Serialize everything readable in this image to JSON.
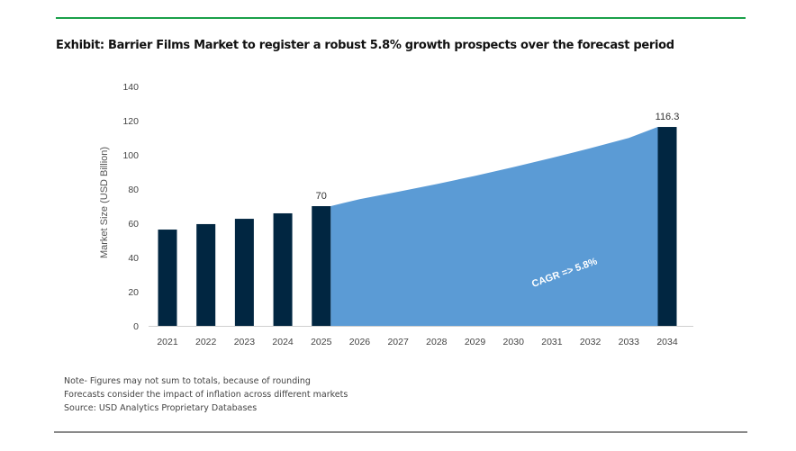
{
  "title": "Exhibit: Barrier Films Market to register a robust 5.8% growth prospects over the forecast period",
  "notes": [
    "Note- Figures may not sum to totals, because of rounding",
    "Forecasts consider the impact of inflation across different markets",
    "Source: USD Analytics Proprietary Databases"
  ],
  "colors": {
    "bar": "#012641",
    "area": "#5b9bd5",
    "accent_rule": "#1aa04a"
  },
  "chart_data": {
    "type": "bar",
    "categories": [
      "2021",
      "2022",
      "2023",
      "2024",
      "2025",
      "2026",
      "2027",
      "2028",
      "2029",
      "2030",
      "2031",
      "2032",
      "2033",
      "2034"
    ],
    "bar_values": [
      56.3,
      59.5,
      62.6,
      65.8,
      70,
      null,
      null,
      null,
      null,
      null,
      null,
      null,
      null,
      116.3
    ],
    "area_values": [
      null,
      null,
      null,
      null,
      70,
      74.1,
      78.4,
      82.9,
      87.7,
      92.8,
      98.2,
      103.9,
      109.9,
      116.3
    ],
    "data_labels": {
      "2025": "70",
      "2034": "116.3"
    },
    "ylabel": "Market Size (USD Billion)",
    "xlabel": "",
    "ylim": [
      0,
      140
    ],
    "yticks": [
      0,
      20,
      40,
      60,
      80,
      100,
      120,
      140
    ],
    "annotation": "CAGR =>  5.8%",
    "grid": false,
    "legend": "none"
  }
}
